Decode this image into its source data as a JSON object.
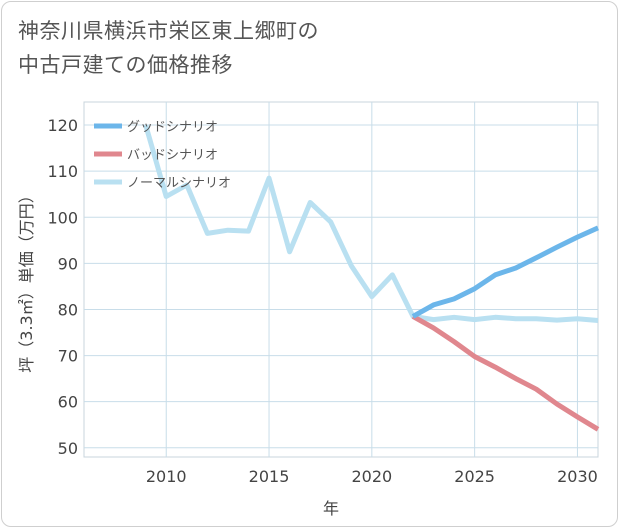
{
  "title_lines": [
    "神奈川県横浜市栄区東上郷町の",
    "中古戸建ての価格推移"
  ],
  "chart_data": {
    "type": "line",
    "title": "神奈川県横浜市栄区東上郷町の中古戸建ての価格推移",
    "xlabel": "年",
    "ylabel": "坪（3.3㎡）単価（万円）",
    "xlim": [
      2006,
      2031
    ],
    "ylim": [
      48,
      125
    ],
    "x_ticks": [
      2010,
      2015,
      2020,
      2025,
      2030
    ],
    "y_ticks": [
      50,
      60,
      70,
      80,
      90,
      100,
      110,
      120
    ],
    "grid": true,
    "legend_position": "top-left",
    "series": [
      {
        "name": "グッドシナリオ",
        "color": "#6cb6ea",
        "x": [
          2022,
          2023,
          2024,
          2025,
          2026,
          2027,
          2028,
          2029,
          2030,
          2031
        ],
        "y": [
          78.5,
          81,
          82.3,
          84.5,
          87.5,
          89,
          91.2,
          93.5,
          95.7,
          97.7
        ]
      },
      {
        "name": "バッドシナリオ",
        "color": "#e0878e",
        "x": [
          2022,
          2023,
          2024,
          2025,
          2026,
          2027,
          2028,
          2029,
          2030,
          2031
        ],
        "y": [
          78.5,
          76,
          73,
          69.8,
          67.5,
          65,
          62.7,
          59.5,
          56.7,
          54
        ]
      },
      {
        "name": "ノーマルシナリオ",
        "color": "#b9e0f1",
        "x": [
          2009,
          2010,
          2011,
          2012,
          2013,
          2014,
          2015,
          2016,
          2017,
          2018,
          2019,
          2020,
          2021,
          2022,
          2023,
          2024,
          2025,
          2026,
          2027,
          2028,
          2029,
          2030,
          2031
        ],
        "y": [
          120,
          104.5,
          107,
          96.5,
          97.2,
          97,
          108.5,
          92.5,
          103.2,
          99,
          89.5,
          82.8,
          87.5,
          78.5,
          77.8,
          78.3,
          77.8,
          78.3,
          78,
          78,
          77.7,
          78,
          77.6
        ]
      }
    ]
  }
}
